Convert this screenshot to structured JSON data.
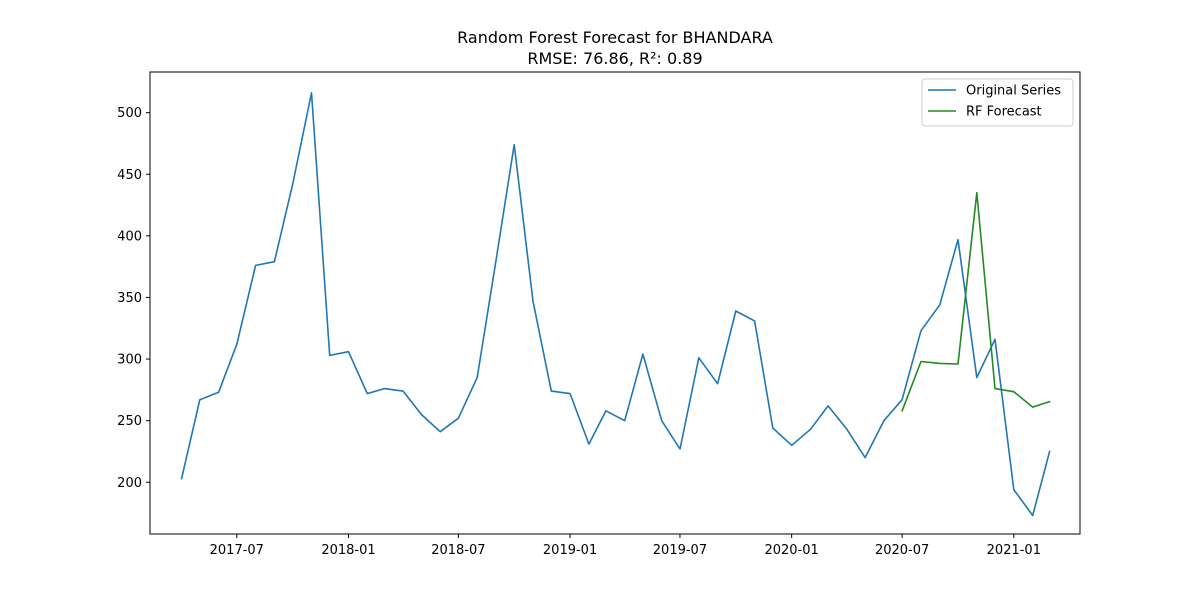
{
  "chart_data": {
    "type": "line",
    "title": "Random Forest Forecast for BHANDARA",
    "subtitle": "RMSE: 76.86, R²: 0.89",
    "xlabel": "",
    "ylabel": "",
    "xlim": [
      "2017-02-08",
      "2021-04-20"
    ],
    "ylim": [
      158,
      533
    ],
    "x_ticks": [
      "2017-07",
      "2018-01",
      "2018-07",
      "2019-01",
      "2019-07",
      "2020-01",
      "2020-07",
      "2021-01"
    ],
    "y_ticks": [
      200,
      250,
      300,
      350,
      400,
      450,
      500
    ],
    "grid": false,
    "legend_position": "top-right",
    "series": [
      {
        "name": "Original Series",
        "color": "#1f77b4",
        "x": [
          "2017-04",
          "2017-05",
          "2017-06",
          "2017-07",
          "2017-08",
          "2017-09",
          "2017-10",
          "2017-11",
          "2017-12",
          "2018-01",
          "2018-02",
          "2018-03",
          "2018-04",
          "2018-05",
          "2018-06",
          "2018-07",
          "2018-08",
          "2018-09",
          "2018-10",
          "2018-11",
          "2018-12",
          "2019-01",
          "2019-02",
          "2019-03",
          "2019-04",
          "2019-05",
          "2019-06",
          "2019-07",
          "2019-08",
          "2019-09",
          "2019-10",
          "2019-11",
          "2019-12",
          "2020-01",
          "2020-02",
          "2020-03",
          "2020-04",
          "2020-05",
          "2020-06",
          "2020-07",
          "2020-08",
          "2020-09",
          "2020-10",
          "2020-11",
          "2020-12",
          "2021-01",
          "2021-02",
          "2021-03"
        ],
        "values": [
          203,
          267,
          273,
          312,
          376,
          379,
          442,
          516,
          303,
          306,
          272,
          276,
          274,
          255,
          241,
          252,
          285,
          380,
          474,
          347,
          274,
          272,
          231,
          258,
          250,
          304,
          250,
          227,
          301,
          280,
          339,
          331,
          244,
          230,
          243,
          262,
          243,
          220,
          250,
          267,
          323,
          344,
          397,
          285,
          316,
          194,
          173,
          225
        ]
      },
      {
        "name": "RF Forecast",
        "color": "#228b22",
        "x": [
          "2020-07",
          "2020-08",
          "2020-09",
          "2020-10",
          "2020-11",
          "2020-12",
          "2021-01",
          "2021-02",
          "2021-03"
        ],
        "values": [
          258,
          298,
          296.5,
          296,
          435,
          276,
          273.5,
          261,
          265.5
        ]
      }
    ]
  }
}
